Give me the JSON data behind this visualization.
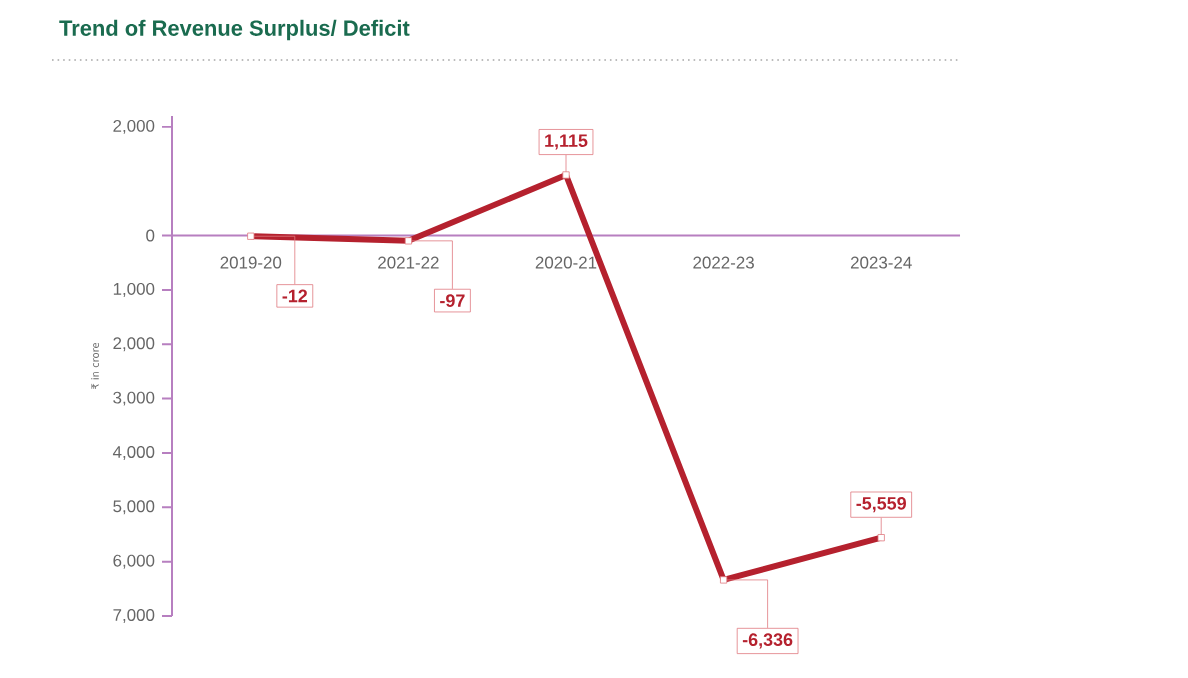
{
  "chart_data": {
    "type": "line",
    "title": "Trend of Revenue Surplus/ Deficit",
    "ylabel": "₹ in crore",
    "categories": [
      "2019-20",
      "2021-22",
      "2020-21",
      "2022-23",
      "2023-24"
    ],
    "series": [
      {
        "color": "#b5212e",
        "values": [
          -12,
          -97,
          1115,
          -6336,
          -5559
        ],
        "value_labels": [
          "-12",
          "-97",
          "1,115",
          "-6,336",
          "-5,559"
        ]
      }
    ],
    "ylim": [
      -7000,
      2200
    ],
    "yticks": [
      {
        "value": 2000,
        "label": "2,000"
      },
      0,
      {
        "value": -1000,
        "label": "1,000"
      },
      {
        "value": -2000,
        "label": "2,000"
      },
      {
        "value": -3000,
        "label": "3,000"
      },
      {
        "value": -4000,
        "label": "4,000"
      },
      {
        "value": -5000,
        "label": "5,000"
      },
      {
        "value": -6000,
        "label": "6,000"
      },
      {
        "value": -7000,
        "label": "7,000"
      }
    ],
    "marker": "square",
    "line_style": "solid",
    "grid": false,
    "legend": false
  }
}
